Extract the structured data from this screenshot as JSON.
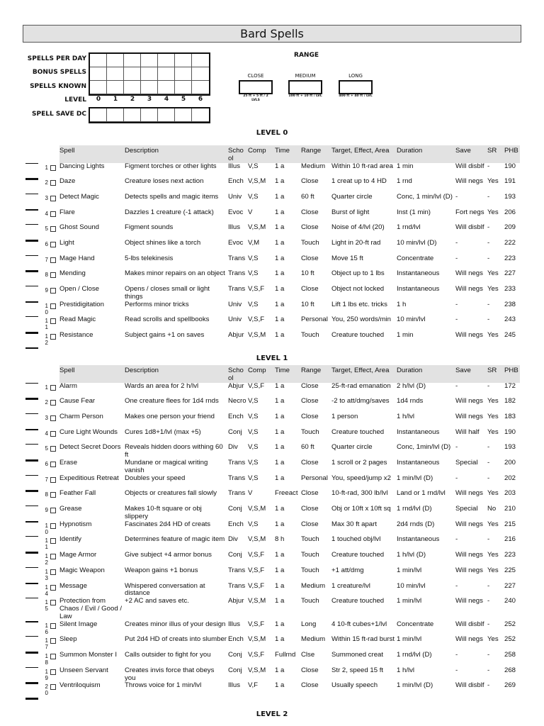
{
  "title": "Bard Spells",
  "tracker": {
    "rows": [
      "SPELLS PER DAY",
      "BONUS SPELLS",
      "SPELLS KNOWN"
    ],
    "level_label": "LEVEL",
    "levels": [
      "0",
      "1",
      "2",
      "3",
      "4",
      "5",
      "6"
    ],
    "dc_label": "SPELL SAVE DC"
  },
  "range": {
    "title": "RANGE",
    "boxes": [
      {
        "label": "CLOSE",
        "caption": "25 ft + 5 ft / 2 LVLS"
      },
      {
        "label": "MEDIUM",
        "caption": "100 ft + 10 ft / LVL"
      },
      {
        "label": "LONG",
        "caption": "400 ft + 40 ft / LVL"
      }
    ]
  },
  "columns": [
    "Spell",
    "Description",
    "School",
    "Comp",
    "Time",
    "Range",
    "Target, Effect, Area",
    "Duration",
    "Save",
    "SR",
    "PHB"
  ],
  "levels": [
    {
      "heading": "LEVEL 0",
      "spells": [
        [
          "1",
          "Dancing Lights",
          "Figment torches or other lights",
          "Illus",
          "V,S",
          "1 a",
          "Medium",
          "Within 10 ft-rad area",
          "1 min",
          "Will disblf",
          "-",
          "190"
        ],
        [
          "2",
          "Daze",
          "Creature loses next action",
          "Ench",
          "V,S,M",
          "1 a",
          "Close",
          "1 creat up to 4 HD",
          "1 rnd",
          "Will negs",
          "Yes",
          "191"
        ],
        [
          "3",
          "Detect Magic",
          "Detects spells and magic items",
          "Univ",
          "V,S",
          "1 a",
          "60 ft",
          "Quarter circle",
          "Conc, 1 min/lvl (D)",
          "-",
          "-",
          "193"
        ],
        [
          "4",
          "Flare",
          "Dazzles 1 creature (-1 attack)",
          "Evoc",
          "V",
          "1 a",
          "Close",
          "Burst of light",
          "Inst (1 min)",
          "Fort negs",
          "Yes",
          "206"
        ],
        [
          "5",
          "Ghost Sound",
          "Figment sounds",
          "Illus",
          "V,S,M",
          "1 a",
          "Close",
          "Noise of 4/lvl (20)",
          "1 rnd/lvl",
          "Will disblf",
          "-",
          "209"
        ],
        [
          "6",
          "Light",
          "Object shines like a torch",
          "Evoc",
          "V,M",
          "1 a",
          "Touch",
          "Light in 20-ft rad",
          "10 min/lvl (D)",
          "-",
          "-",
          "222"
        ],
        [
          "7",
          "Mage Hand",
          "5-lbs telekinesis",
          "Trans",
          "V,S",
          "1 a",
          "Close",
          "Move 15 ft",
          "Concentrate",
          "-",
          "-",
          "223"
        ],
        [
          "8",
          "Mending",
          "Makes minor repairs on an object",
          "Trans",
          "V,S",
          "1 a",
          "10 ft",
          "Object up to 1 lbs",
          "Instantaneous",
          "Will negs",
          "Yes",
          "227"
        ],
        [
          "9",
          "Open / Close",
          "Opens / closes small or light things",
          "Trans",
          "V,S,F",
          "1 a",
          "Close",
          "Object not locked",
          "Instantaneous",
          "Will negs",
          "Yes",
          "233"
        ],
        [
          "10",
          "Prestidigitation",
          "Performs minor tricks",
          "Univ",
          "V,S",
          "1 a",
          "10 ft",
          "Lift 1 lbs etc. tricks",
          "1 h",
          "-",
          "-",
          "238"
        ],
        [
          "11",
          "Read Magic",
          "Read scrolls and spellbooks",
          "Univ",
          "V,S,F",
          "1 a",
          "Personal",
          "You, 250 words/min",
          "10 min/lvl",
          "-",
          "-",
          "243"
        ],
        [
          "12",
          "Resistance",
          "Subject gains +1 on saves",
          "Abjur",
          "V,S,M",
          "1 a",
          "Touch",
          "Creature touched",
          "1 min",
          "Will negs",
          "Yes",
          "245"
        ]
      ]
    },
    {
      "heading": "LEVEL 1",
      "spells": [
        [
          "1",
          "Alarm",
          "Wards an area for 2 h/lvl",
          "Abjur",
          "V,S,F",
          "1 a",
          "Close",
          "25-ft-rad emanation",
          "2 h/lvl (D)",
          "-",
          "-",
          "172"
        ],
        [
          "2",
          "Cause Fear",
          "One creature flees for 1d4 rnds",
          "Necro",
          "V,S",
          "1 a",
          "Close",
          "-2 to att/dmg/saves",
          "1d4 rnds",
          "Will negs",
          "Yes",
          "182"
        ],
        [
          "3",
          "Charm Person",
          "Makes one person your friend",
          "Ench",
          "V,S",
          "1 a",
          "Close",
          "1 person",
          "1 h/lvl",
          "Will negs",
          "Yes",
          "183"
        ],
        [
          "4",
          "Cure Light Wounds",
          "Cures 1d8+1/lvl (max +5)",
          "Conj",
          "V,S",
          "1 a",
          "Touch",
          "Creature touched",
          "Instantaneous",
          "Will half",
          "Yes",
          "190"
        ],
        [
          "5",
          "Detect Secret Doors",
          "Reveals hidden doors withing 60 ft",
          "Div",
          "V,S",
          "1 a",
          "60 ft",
          "Quarter circle",
          "Conc, 1min/lvl (D)",
          "-",
          "-",
          "193"
        ],
        [
          "6",
          "Erase",
          "Mundane or magical writing vanish",
          "Trans",
          "V,S",
          "1 a",
          "Close",
          "1 scroll or 2 pages",
          "Instantaneous",
          "Special",
          "-",
          "200"
        ],
        [
          "7",
          "Expeditious Retreat",
          "Doubles your speed",
          "Trans",
          "V,S",
          "1 a",
          "Personal",
          "You, speed/jump x2",
          "1 min/lvl (D)",
          "-",
          "-",
          "202"
        ],
        [
          "8",
          "Feather Fall",
          "Objects or creatures fall slowly",
          "Trans",
          "V",
          "Freeact",
          "Close",
          "10-ft-rad, 300 lb/lvl",
          "Land or 1 rnd/lvl",
          "Will negs",
          "Yes",
          "203"
        ],
        [
          "9",
          "Grease",
          "Makes 10-ft square or obj slippery",
          "Conj",
          "V,S,M",
          "1 a",
          "Close",
          "Obj or 10ft x 10ft sq",
          "1 rnd/lvl (D)",
          "Special",
          "No",
          "210"
        ],
        [
          "10",
          "Hypnotism",
          "Fascinates 2d4 HD of creats",
          "Ench",
          "V,S",
          "1 a",
          "Close",
          "Max 30 ft apart",
          "2d4 rnds (D)",
          "Will negs",
          "Yes",
          "215"
        ],
        [
          "11",
          "Identify",
          "Determines feature of magic item",
          "Div",
          "V,S,M",
          "8 h",
          "Touch",
          "1 touched obj/lvl",
          "Instantaneous",
          "-",
          "-",
          "216"
        ],
        [
          "12",
          "Mage Armor",
          "Give subject +4 armor bonus",
          "Conj",
          "V,S,F",
          "1 a",
          "Touch",
          "Creature touched",
          "1 h/lvl (D)",
          "Will negs",
          "Yes",
          "223"
        ],
        [
          "13",
          "Magic Weapon",
          "Weapon gains +1 bonus",
          "Trans",
          "V,S,F",
          "1 a",
          "Touch",
          "+1 att/dmg",
          "1 min/lvl",
          "Will negs",
          "Yes",
          "225"
        ],
        [
          "14",
          "Message",
          "Whispered conversation at distance",
          "Trans",
          "V,S,F",
          "1 a",
          "Medium",
          "1 creature/lvl",
          "10 min/lvl",
          "-",
          "-",
          "227"
        ],
        [
          "15",
          "Protection from Chaos / Evil / Good / Law",
          "+2 AC and saves etc.",
          "Abjur",
          "V,S,M",
          "1 a",
          "Touch",
          "Creature touched",
          "1 min/lvl",
          "Will negs",
          "-",
          "240"
        ],
        [
          "16",
          "Silent Image",
          "Creates minor illus of your design",
          "Illus",
          "V,S,F",
          "1 a",
          "Long",
          "4 10-ft cubes+1/lvl",
          "Concentrate",
          "Will disblf",
          "-",
          "252"
        ],
        [
          "17",
          "Sleep",
          "Put 2d4 HD of creats into slumber",
          "Ench",
          "V,S,M",
          "1 a",
          "Medium",
          "Within 15 ft-rad burst",
          "1 min/lvl",
          "Will negs",
          "Yes",
          "252"
        ],
        [
          "18",
          "Summon Monster I",
          "Calls outsider to fight for you",
          "Conj",
          "V,S,F",
          "Fullrnd",
          "Clse",
          "Summoned creat",
          "1 rnd/lvl (D)",
          "-",
          "-",
          "258"
        ],
        [
          "19",
          "Unseen Servant",
          "Creates invis force that obeys you",
          "Conj",
          "V,S,M",
          "1 a",
          "Close",
          "Str 2, speed 15 ft",
          "1 h/lvl",
          "-",
          "-",
          "268"
        ],
        [
          "20",
          "Ventriloquism",
          "Throws voice for 1 min/lvl",
          "Illus",
          "V,F",
          "1 a",
          "Close",
          "Usually speech",
          "1 min/lvl (D)",
          "Will disblf",
          "-",
          "269"
        ]
      ]
    },
    {
      "heading": "LEVEL 2",
      "spells": []
    }
  ]
}
